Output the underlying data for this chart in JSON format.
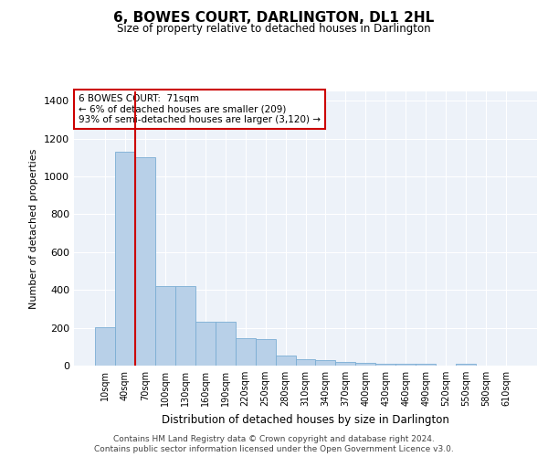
{
  "title": "6, BOWES COURT, DARLINGTON, DL1 2HL",
  "subtitle": "Size of property relative to detached houses in Darlington",
  "xlabel": "Distribution of detached houses by size in Darlington",
  "ylabel": "Number of detached properties",
  "categories": [
    "10sqm",
    "40sqm",
    "70sqm",
    "100sqm",
    "130sqm",
    "160sqm",
    "190sqm",
    "220sqm",
    "250sqm",
    "280sqm",
    "310sqm",
    "340sqm",
    "370sqm",
    "400sqm",
    "430sqm",
    "460sqm",
    "490sqm",
    "520sqm",
    "550sqm",
    "580sqm",
    "610sqm"
  ],
  "values": [
    205,
    1130,
    1100,
    420,
    420,
    230,
    230,
    145,
    140,
    55,
    35,
    30,
    20,
    14,
    12,
    10,
    10,
    0,
    10,
    0,
    0
  ],
  "bar_color": "#b8d0e8",
  "bar_edge_color": "#7aadd4",
  "marker_index": 2,
  "marker_color": "#cc0000",
  "annotation_text": "6 BOWES COURT:  71sqm\n← 6% of detached houses are smaller (209)\n93% of semi-detached houses are larger (3,120) →",
  "annotation_box_color": "#ffffff",
  "annotation_box_edge_color": "#cc0000",
  "ylim": [
    0,
    1450
  ],
  "yticks": [
    0,
    200,
    400,
    600,
    800,
    1000,
    1200,
    1400
  ],
  "background_color": "#edf2f9",
  "footer_line1": "Contains HM Land Registry data © Crown copyright and database right 2024.",
  "footer_line2": "Contains public sector information licensed under the Open Government Licence v3.0."
}
